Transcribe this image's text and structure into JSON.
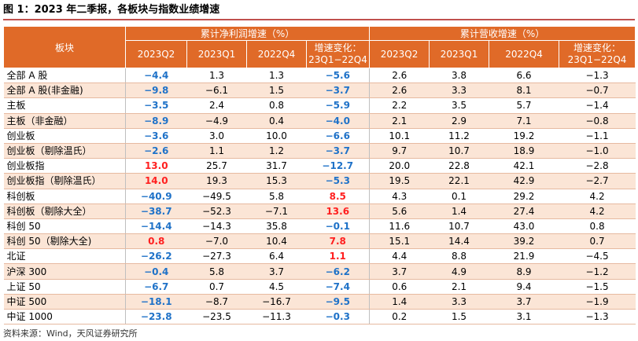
{
  "title": "图 1：2023 年二季报，各板块与指数业绩增速",
  "source": "资料来源：Wind，天风证券研究所",
  "header": {
    "corner": "板块",
    "group_profit": "累计净利润增速（%）",
    "group_revenue": "累计营收增速（%）",
    "cols": [
      "2023Q2",
      "2023Q1",
      "2022Q4",
      "增速变化：",
      "23Q1−22Q4"
    ]
  },
  "rows": [
    {
      "name": "全部 A 股",
      "p": [
        "−4.4",
        "1.3",
        "1.3",
        "−5.6"
      ],
      "r": [
        "2.6",
        "3.8",
        "6.6",
        "−1.3"
      ]
    },
    {
      "name": "全部 A 股(非金融)",
      "p": [
        "−9.8",
        "−6.1",
        "1.5",
        "−3.7"
      ],
      "r": [
        "2.6",
        "3.3",
        "8.1",
        "−0.7"
      ]
    },
    {
      "name": "主板",
      "p": [
        "−3.5",
        "2.4",
        "0.8",
        "−5.9"
      ],
      "r": [
        "2.2",
        "3.5",
        "5.7",
        "−1.4"
      ]
    },
    {
      "name": "主板（非金融）",
      "p": [
        "−8.9",
        "−4.9",
        "0.4",
        "−4.0"
      ],
      "r": [
        "2.1",
        "2.9",
        "7.1",
        "−0.8"
      ]
    },
    {
      "name": "创业板",
      "p": [
        "−3.6",
        "3.0",
        "10.0",
        "−6.6"
      ],
      "r": [
        "10.1",
        "11.2",
        "19.2",
        "−1.1"
      ]
    },
    {
      "name": "创业板（剔除温氏）",
      "p": [
        "−2.6",
        "1.1",
        "1.2",
        "−3.7"
      ],
      "r": [
        "9.7",
        "10.7",
        "18.9",
        "−1.0"
      ]
    },
    {
      "name": "创业板指",
      "p": [
        "13.0",
        "25.7",
        "31.7",
        "−12.7"
      ],
      "r": [
        "20.0",
        "22.8",
        "42.1",
        "−2.8"
      ]
    },
    {
      "name": "创业板指（剔除温氏）",
      "p": [
        "14.0",
        "19.3",
        "15.3",
        "−5.3"
      ],
      "r": [
        "19.5",
        "22.1",
        "42.9",
        "−2.7"
      ]
    },
    {
      "name": "科创板",
      "p": [
        "−40.9",
        "−49.5",
        "5.8",
        "8.5"
      ],
      "r": [
        "4.3",
        "0.1",
        "29.2",
        "4.2"
      ]
    },
    {
      "name": "科创板（剔除大全）",
      "p": [
        "−38.7",
        "−52.3",
        "−7.1",
        "13.6"
      ],
      "r": [
        "5.6",
        "1.4",
        "27.4",
        "4.2"
      ]
    },
    {
      "name": "科创 50",
      "p": [
        "−14.4",
        "−14.3",
        "35.8",
        "−0.1"
      ],
      "r": [
        "11.6",
        "10.7",
        "43.0",
        "0.8"
      ]
    },
    {
      "name": "科创 50（剔除大全)",
      "p": [
        "0.8",
        "−7.0",
        "10.4",
        "7.8"
      ],
      "r": [
        "15.1",
        "14.4",
        "39.2",
        "0.7"
      ]
    },
    {
      "name": "北证",
      "p": [
        "−26.2",
        "−27.3",
        "6.4",
        "1.1"
      ],
      "r": [
        "4.4",
        "8.8",
        "21.9",
        "−4.5"
      ]
    },
    {
      "name": "沪深 300",
      "p": [
        "−0.4",
        "5.8",
        "3.7",
        "−6.2"
      ],
      "r": [
        "3.7",
        "4.9",
        "8.9",
        "−1.2"
      ]
    },
    {
      "name": "上证 50",
      "p": [
        "−6.7",
        "0.7",
        "4.5",
        "−7.4"
      ],
      "r": [
        "0.6",
        "2.1",
        "9.4",
        "−1.5"
      ]
    },
    {
      "name": "中证 500",
      "p": [
        "−18.1",
        "−8.7",
        "−16.7",
        "−9.5"
      ],
      "r": [
        "1.4",
        "3.3",
        "3.7",
        "−1.9"
      ]
    },
    {
      "name": "中证 1000",
      "p": [
        "−23.8",
        "−23.5",
        "−11.3",
        "−0.3"
      ],
      "r": [
        "0.2",
        "1.5",
        "3.1",
        "−1.3"
      ]
    }
  ]
}
